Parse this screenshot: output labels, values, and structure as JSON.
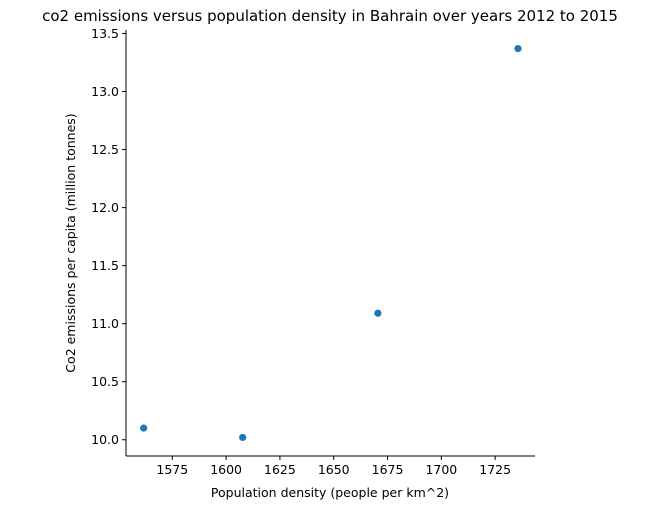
{
  "chart_data": {
    "type": "scatter",
    "title": "co2 emissions versus population density in Bahrain over years 2012 to 2015",
    "xlabel": "Population density (people per km^2)",
    "ylabel": "Co2 emissions per capita (million tonnes)",
    "xlim": [
      1553.5,
      1743.5
    ],
    "ylim": [
      9.86,
      13.53
    ],
    "xticks": [
      1575,
      1600,
      1625,
      1650,
      1675,
      1700,
      1725
    ],
    "yticks": [
      10.0,
      10.5,
      11.0,
      11.5,
      12.0,
      12.5,
      13.0,
      13.5
    ],
    "xtick_labels": [
      "1575",
      "1600",
      "1625",
      "1650",
      "1675",
      "1700",
      "1725"
    ],
    "ytick_labels": [
      "10.0",
      "10.5",
      "11.0",
      "11.5",
      "12.0",
      "12.5",
      "13.0",
      "13.5"
    ],
    "points": [
      {
        "x": 1561.7,
        "y": 10.1
      },
      {
        "x": 1607.7,
        "y": 10.02
      },
      {
        "x": 1670.5,
        "y": 11.09
      },
      {
        "x": 1735.6,
        "y": 13.37
      }
    ],
    "marker_color": "#1f77b4",
    "grid": false
  }
}
